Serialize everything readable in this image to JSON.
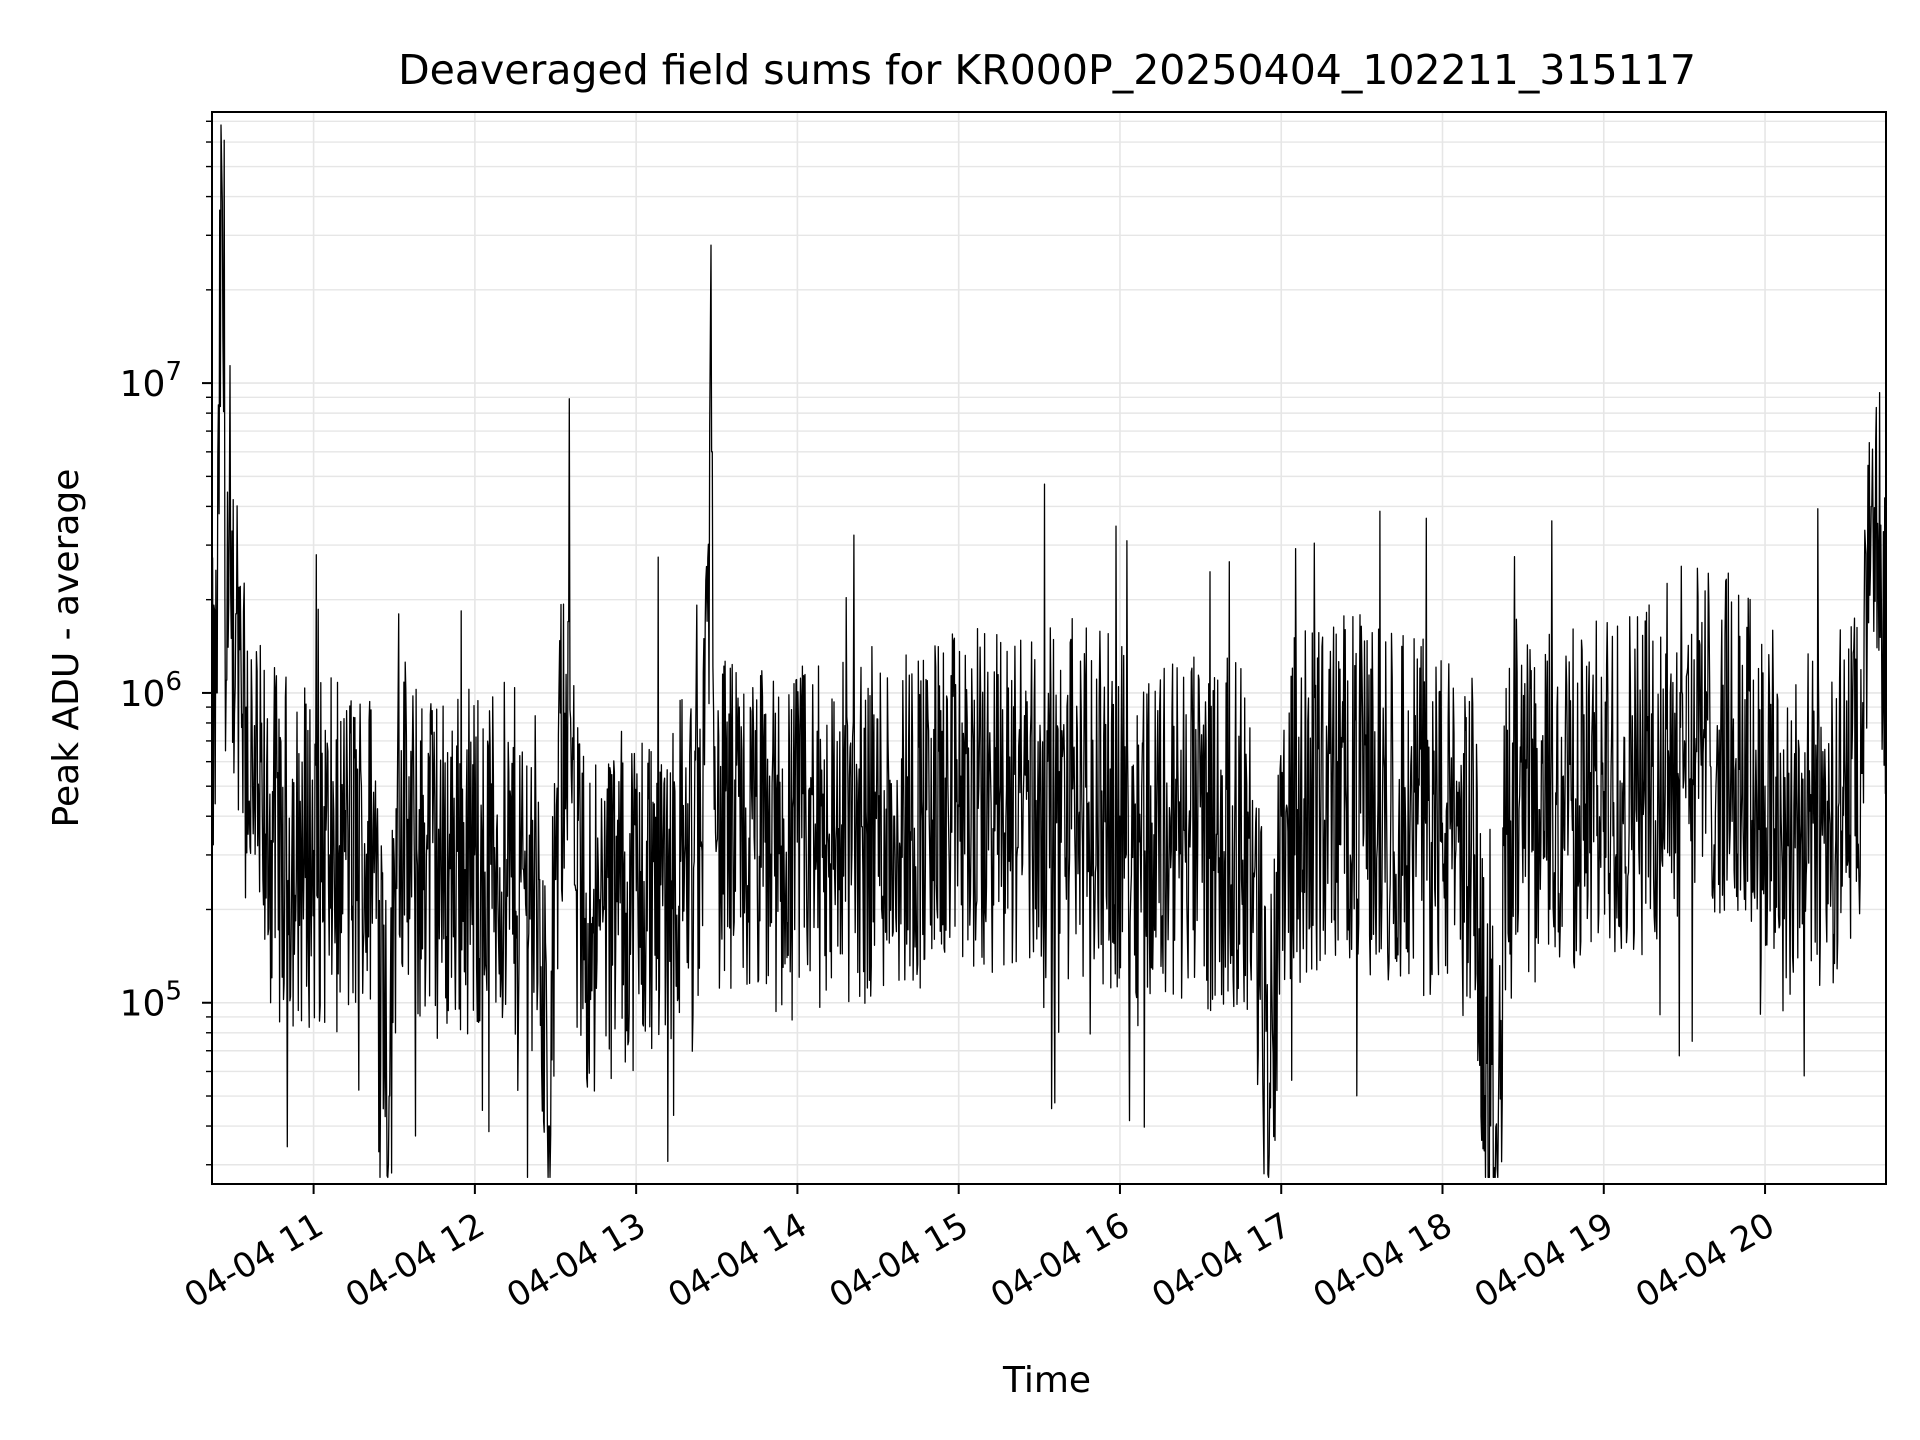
{
  "chart_data": {
    "type": "line",
    "title": "Deaveraged field sums for KR000P_20250404_102211_315117",
    "xlabel": "Time",
    "ylabel": "Peak ADU - average",
    "yscale": "log",
    "grid": true,
    "legend": "none",
    "line_color": "#000000",
    "grid_color": "#e6e6e6",
    "x_ticks": [
      "04-04 11",
      "04-04 12",
      "04-04 13",
      "04-04 14",
      "04-04 15",
      "04-04 16",
      "04-04 17",
      "04-04 18",
      "04-04 19",
      "04-04 20"
    ],
    "x_tick_hours": [
      11,
      12,
      13,
      14,
      15,
      16,
      17,
      18,
      19,
      20
    ],
    "xlim_hours": [
      10.37,
      20.75
    ],
    "y_ticks": [
      {
        "base": "10",
        "exp": "5",
        "value": 100000
      },
      {
        "base": "10",
        "exp": "6",
        "value": 1000000
      },
      {
        "base": "10",
        "exp": "7",
        "value": 10000000
      }
    ],
    "ylim": [
      26000,
      75000000
    ],
    "series": [
      {
        "x_hours": [
          10.37,
          10.4,
          10.43,
          10.46,
          10.49,
          10.52,
          10.55,
          10.58,
          10.62,
          10.66,
          10.7,
          10.75,
          10.8,
          10.9,
          11.0,
          11.1,
          11.2,
          11.3,
          11.4,
          11.47,
          11.52,
          11.6,
          11.7,
          11.8,
          11.9,
          12.0,
          12.1,
          12.2,
          12.3,
          12.4,
          12.46,
          12.5,
          12.58,
          12.62,
          12.66,
          12.72,
          12.8,
          12.9,
          13.0,
          13.1,
          13.2,
          13.3,
          13.4,
          13.47,
          13.5,
          13.6,
          13.7,
          13.8,
          13.9,
          14.0,
          14.2,
          14.4,
          14.6,
          14.8,
          15.0,
          15.2,
          15.4,
          15.6,
          15.8,
          16.0,
          16.2,
          16.4,
          16.6,
          16.8,
          16.93,
          17.0,
          17.1,
          17.2,
          17.4,
          17.6,
          17.8,
          18.0,
          18.1,
          18.2,
          18.3,
          18.4,
          18.6,
          18.8,
          19.0,
          19.1,
          19.3,
          19.4,
          19.5,
          19.6,
          19.8,
          20.0,
          20.1,
          20.2,
          20.3,
          20.4,
          20.5,
          20.6,
          20.66,
          20.75
        ],
        "y": [
          700000,
          1000000,
          50000000,
          1100000,
          1500000,
          1800000,
          1300000,
          900000,
          500000,
          400000,
          350000,
          330000,
          320000,
          300000,
          310000,
          300000,
          290000,
          310000,
          280000,
          50000,
          500000,
          290000,
          300000,
          280000,
          290000,
          300000,
          280000,
          290000,
          270000,
          250000,
          40000,
          250000,
          1700000,
          240000,
          200000,
          180000,
          200000,
          210000,
          230000,
          250000,
          280000,
          290000,
          320000,
          6000000,
          330000,
          350000,
          340000,
          330000,
          320000,
          330000,
          350000,
          370000,
          400000,
          420000,
          430000,
          440000,
          450000,
          450000,
          440000,
          400000,
          380000,
          360000,
          350000,
          340000,
          55000,
          400000,
          420000,
          450000,
          500000,
          450000,
          420000,
          380000,
          330000,
          300000,
          40000,
          350000,
          420000,
          450000,
          480000,
          520000,
          580000,
          650000,
          700000,
          750000,
          650000,
          500000,
          400000,
          350000,
          380000,
          420000,
          480000,
          550000,
          4000000,
          1700000
        ]
      }
    ]
  }
}
